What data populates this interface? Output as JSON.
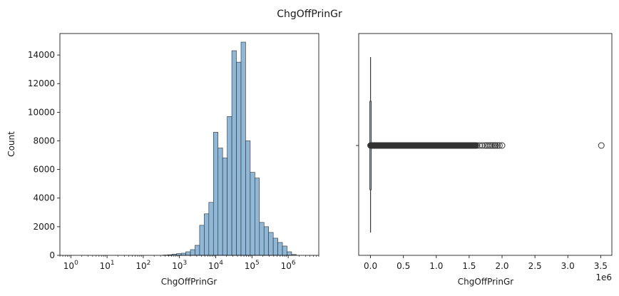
{
  "figure": {
    "title": "ChgOffPrinGr"
  },
  "chart_data": [
    {
      "type": "bar",
      "subtype": "histogram",
      "xlabel": "ChgOffPrinGr",
      "ylabel": "Count",
      "x_scale": "log",
      "xlim": [
        0.5,
        7000000
      ],
      "ylim": [
        0,
        15500
      ],
      "x_ticks": [
        {
          "base": "10",
          "exp": "0"
        },
        {
          "base": "10",
          "exp": "1"
        },
        {
          "base": "10",
          "exp": "2"
        },
        {
          "base": "10",
          "exp": "3"
        },
        {
          "base": "10",
          "exp": "4"
        },
        {
          "base": "10",
          "exp": "5"
        },
        {
          "base": "10",
          "exp": "6"
        }
      ],
      "y_ticks": [
        "0",
        "2000",
        "4000",
        "6000",
        "8000",
        "10000",
        "12000",
        "14000"
      ],
      "bar_color": "#8fb8d8",
      "edge_color": "#2b2b2b",
      "bins_log10": {
        "start": 0,
        "width": 0.127,
        "counts": [
          0,
          0,
          0,
          0,
          0,
          0,
          0,
          0,
          0,
          0,
          0,
          0,
          0,
          0,
          0,
          0,
          0,
          0,
          0,
          0,
          20,
          40,
          80,
          120,
          150,
          250,
          400,
          700,
          2100,
          2900,
          3700,
          8600,
          7500,
          6800,
          9700,
          14300,
          13500,
          14900,
          8000,
          5800,
          5400,
          2300,
          2000,
          1600,
          1200,
          900,
          650,
          250,
          60,
          0,
          0
        ]
      }
    },
    {
      "type": "box",
      "orientation": "horizontal",
      "xlabel": "ChgOffPrinGr",
      "x_offset_label": "1e6",
      "xlim": [
        -0.18,
        3.67
      ],
      "x_ticks": [
        "0.0",
        "0.5",
        "1.0",
        "1.5",
        "2.0",
        "2.5",
        "3.0",
        "3.5"
      ],
      "x_tick_values": [
        0,
        0.5,
        1.0,
        1.5,
        2.0,
        2.5,
        3.0,
        3.5
      ],
      "box": {
        "q1": 0.0,
        "median": 0.0,
        "q3": 0.01,
        "whisker_low": 0.0,
        "whisker_high": 0.02
      },
      "outliers_dense_range": [
        0.0,
        1.6
      ],
      "outliers": [
        1.62,
        1.66,
        1.7,
        1.74,
        1.77,
        1.8,
        1.83,
        1.86,
        1.89,
        1.9,
        1.93,
        1.96,
        2.0,
        3.51
      ],
      "outlier_color": "#333333"
    }
  ]
}
